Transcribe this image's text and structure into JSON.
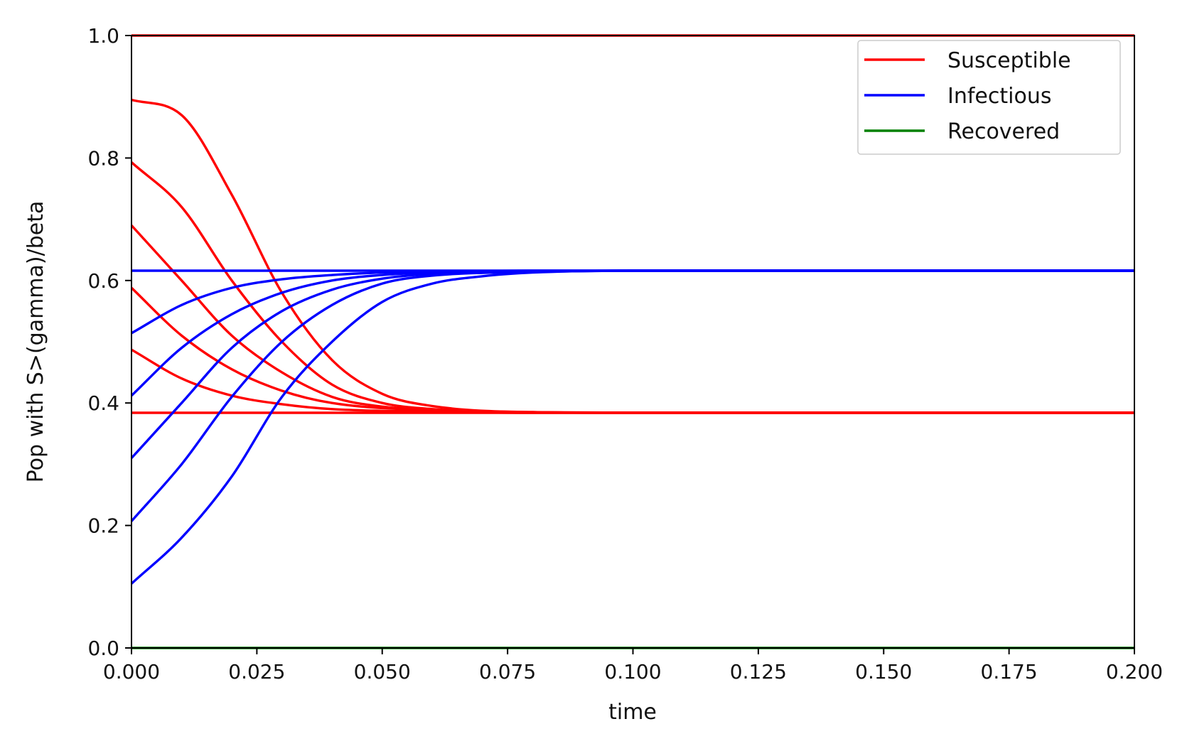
{
  "chart_data": {
    "type": "line",
    "title": "",
    "xlabel": "time",
    "ylabel": "Pop with S>(gamma)/beta",
    "xlim": [
      0.0,
      0.2
    ],
    "ylim": [
      0.0,
      1.0
    ],
    "x_ticks": [
      "0.000",
      "0.025",
      "0.050",
      "0.075",
      "0.100",
      "0.125",
      "0.150",
      "0.175",
      "0.200"
    ],
    "y_ticks": [
      "0.0",
      "0.2",
      "0.4",
      "0.6",
      "0.8",
      "1.0"
    ],
    "grid": false,
    "legend_position": "top-right",
    "legend": [
      {
        "label": "Susceptible",
        "color": "#ff0000"
      },
      {
        "label": "Infectious",
        "color": "#0000ff"
      },
      {
        "label": "Recovered",
        "color": "#008000"
      }
    ],
    "colors": {
      "susceptible": "#ff0000",
      "infectious": "#0000ff",
      "recovered": "#008000"
    },
    "series": [
      {
        "group": "susceptible",
        "x": [
          0,
          0.2
        ],
        "y": [
          1.0,
          1.0
        ]
      },
      {
        "group": "susceptible",
        "x": [
          0,
          0.01,
          0.02,
          0.03,
          0.04,
          0.05,
          0.06,
          0.08,
          0.1,
          0.2
        ],
        "y": [
          0.895,
          0.87,
          0.74,
          0.58,
          0.47,
          0.415,
          0.395,
          0.385,
          0.384,
          0.384
        ]
      },
      {
        "group": "susceptible",
        "x": [
          0,
          0.01,
          0.02,
          0.03,
          0.04,
          0.05,
          0.06,
          0.08,
          0.1,
          0.2
        ],
        "y": [
          0.793,
          0.72,
          0.6,
          0.5,
          0.43,
          0.4,
          0.39,
          0.385,
          0.384,
          0.384
        ]
      },
      {
        "group": "susceptible",
        "x": [
          0,
          0.01,
          0.02,
          0.03,
          0.04,
          0.05,
          0.07,
          0.1,
          0.2
        ],
        "y": [
          0.69,
          0.6,
          0.51,
          0.45,
          0.41,
          0.394,
          0.386,
          0.384,
          0.384
        ]
      },
      {
        "group": "susceptible",
        "x": [
          0,
          0.01,
          0.02,
          0.03,
          0.04,
          0.06,
          0.08,
          0.1,
          0.2
        ],
        "y": [
          0.588,
          0.51,
          0.455,
          0.42,
          0.4,
          0.388,
          0.385,
          0.384,
          0.384
        ]
      },
      {
        "group": "susceptible",
        "x": [
          0,
          0.01,
          0.02,
          0.03,
          0.04,
          0.06,
          0.08,
          0.2
        ],
        "y": [
          0.487,
          0.44,
          0.412,
          0.398,
          0.39,
          0.386,
          0.384,
          0.384
        ]
      },
      {
        "group": "susceptible",
        "x": [
          0,
          0.2
        ],
        "y": [
          0.384,
          0.384
        ]
      },
      {
        "group": "infectious",
        "x": [
          0,
          0.2
        ],
        "y": [
          0.616,
          0.616
        ]
      },
      {
        "group": "infectious",
        "x": [
          0,
          0.01,
          0.02,
          0.03,
          0.04,
          0.05,
          0.06,
          0.08,
          0.2
        ],
        "y": [
          0.514,
          0.56,
          0.588,
          0.602,
          0.609,
          0.613,
          0.615,
          0.616,
          0.616
        ]
      },
      {
        "group": "infectious",
        "x": [
          0,
          0.01,
          0.02,
          0.03,
          0.04,
          0.05,
          0.06,
          0.08,
          0.1,
          0.2
        ],
        "y": [
          0.412,
          0.49,
          0.545,
          0.58,
          0.6,
          0.609,
          0.613,
          0.615,
          0.616,
          0.616
        ]
      },
      {
        "group": "infectious",
        "x": [
          0,
          0.01,
          0.02,
          0.03,
          0.04,
          0.05,
          0.06,
          0.08,
          0.1,
          0.2
        ],
        "y": [
          0.31,
          0.4,
          0.49,
          0.55,
          0.585,
          0.603,
          0.611,
          0.615,
          0.616,
          0.616
        ]
      },
      {
        "group": "infectious",
        "x": [
          0,
          0.01,
          0.02,
          0.03,
          0.04,
          0.05,
          0.06,
          0.08,
          0.1,
          0.2
        ],
        "y": [
          0.207,
          0.3,
          0.41,
          0.5,
          0.56,
          0.595,
          0.608,
          0.614,
          0.616,
          0.616
        ]
      },
      {
        "group": "infectious",
        "x": [
          0,
          0.01,
          0.02,
          0.03,
          0.04,
          0.05,
          0.06,
          0.07,
          0.08,
          0.1,
          0.2
        ],
        "y": [
          0.105,
          0.18,
          0.28,
          0.41,
          0.5,
          0.565,
          0.595,
          0.607,
          0.613,
          0.616,
          0.616
        ]
      },
      {
        "group": "recovered",
        "x": [
          0,
          0.2
        ],
        "y": [
          0.0,
          0.0
        ]
      }
    ]
  }
}
